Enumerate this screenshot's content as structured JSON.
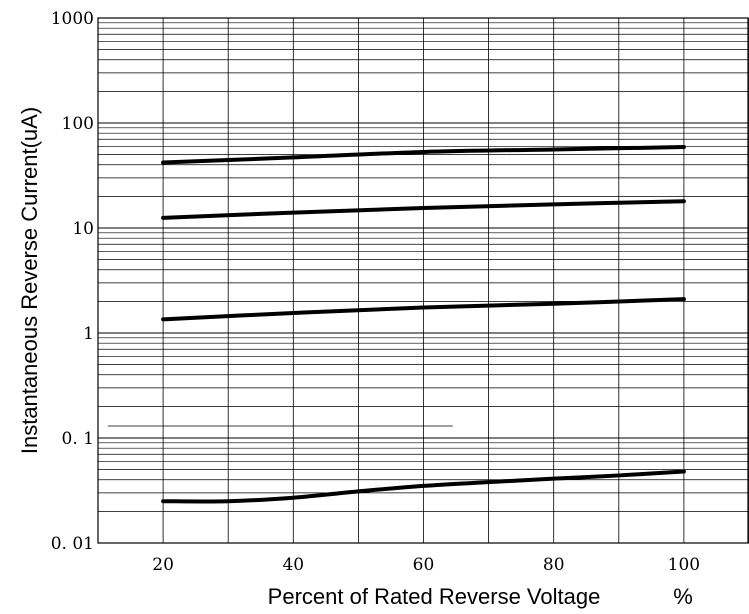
{
  "chart_data": {
    "type": "line",
    "title": "",
    "xlabel": "Percent of Rated Reverse Voltage",
    "x_unit": "%",
    "ylabel": "Instantaneous Reverse Current(uA)",
    "xlim": [
      10,
      110
    ],
    "ylim": [
      0.01,
      1000
    ],
    "yscale": "log",
    "grid": true,
    "x_ticks": [
      20,
      40,
      60,
      80,
      100
    ],
    "x_tick_labels": [
      "20",
      "40",
      "60",
      "80",
      "100"
    ],
    "y_ticks": [
      0.01,
      0.1,
      1,
      10,
      100,
      1000
    ],
    "y_tick_labels": [
      "0. 01",
      "0. 1",
      "1",
      "10",
      "100",
      "1000"
    ],
    "series": [
      {
        "x": [
          20,
          40,
          60,
          80,
          100
        ],
        "values": [
          42,
          47,
          53,
          56,
          59
        ]
      },
      {
        "x": [
          20,
          40,
          60,
          80,
          100
        ],
        "values": [
          12.5,
          14,
          15.5,
          16.8,
          18
        ]
      },
      {
        "x": [
          20,
          40,
          60,
          80,
          100
        ],
        "values": [
          1.35,
          1.55,
          1.75,
          1.9,
          2.1
        ]
      },
      {
        "x": [
          20,
          30,
          40,
          50,
          60,
          70,
          80,
          90,
          100
        ],
        "values": [
          0.025,
          0.025,
          0.027,
          0.031,
          0.035,
          0.038,
          0.041,
          0.044,
          0.048
        ]
      }
    ],
    "annotations": [
      {
        "type": "hline",
        "y": 0.13,
        "x_range": [
          11.5,
          64.5
        ]
      }
    ]
  }
}
